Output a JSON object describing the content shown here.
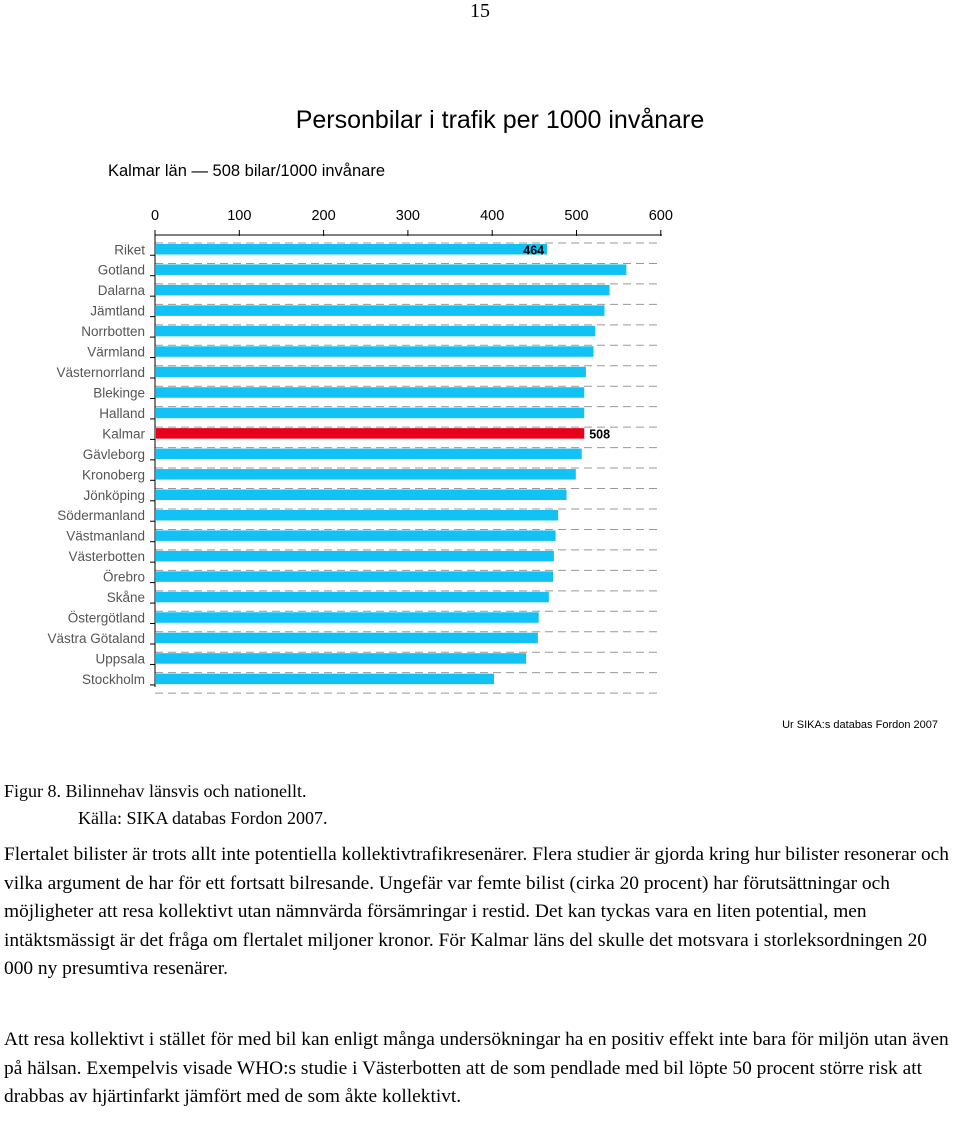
{
  "page": {
    "number": "15"
  },
  "figure": {
    "caption_line1": "Figur 8. Bilinnehav länsvis och nationellt.",
    "caption_line2": "Källa: SIKA databas Fordon 2007."
  },
  "chart_data": {
    "type": "bar",
    "orientation": "horizontal",
    "title": "Personbilar i trafik per 1000 invånare",
    "subtitle": "Kalmar län — 508 bilar/1000 invånare",
    "source": "Ur SIKA:s databas Fordon 2007",
    "categories": [
      "Riket",
      "Gotland",
      "Dalarna",
      "Jämtland",
      "Norrbotten",
      "Värmland",
      "Västernorrland",
      "Blekinge",
      "Halland",
      "Kalmar",
      "Gävleborg",
      "Kronoberg",
      "Jönköping",
      "Södermanland",
      "Västmanland",
      "Västerbotten",
      "Örebro",
      "Skåne",
      "Östergötland",
      "Västra Götaland",
      "Uppsala",
      "Stockholm"
    ],
    "values": [
      464,
      558,
      538,
      532,
      521,
      519,
      510,
      508,
      508,
      508,
      505,
      498,
      487,
      477,
      474,
      472,
      471,
      466,
      454,
      453,
      439,
      401
    ],
    "data_labels": [
      {
        "category": "Riket",
        "text": "464"
      },
      {
        "category": "Kalmar",
        "text": "508"
      }
    ],
    "xlim": [
      0,
      600
    ],
    "xticks": [
      "0",
      "100",
      "200",
      "300",
      "400",
      "500",
      "600"
    ],
    "x_axis_position": "top",
    "grid": "dashed horizontal",
    "colors": {
      "bar": "#12c2f4",
      "highlight": "#e6001a",
      "highlight_category": "Kalmar",
      "grid": "#999999"
    }
  },
  "body": {
    "paragraph1": "Flertalet bilister är trots allt inte potentiella kollektivtrafikresenärer. Flera studier är gjorda kring hur bilister resonerar och vilka argument de har för ett fortsatt bilresande. Ungefär var femte bilist (cirka 20 procent) har förutsättningar och möjligheter att resa kollektivt utan nämnvärda försämringar i restid. Det kan tyckas vara en liten potential, men intäktsmässigt är det fråga om flertalet miljoner kronor. För Kalmar läns del skulle det motsvara i storleksordningen 20 000 ny presumtiva resenärer.",
    "paragraph2": "Att resa kollektivt i stället för med bil kan enligt många undersökningar ha en positiv effekt inte bara för miljön utan även på hälsan. Exempelvis visade WHO:s studie i Västerbotten att de som pendlade med bil löpte 50 procent större risk att drabbas av hjärtinfarkt jämfört med de som åkte kollektivt."
  }
}
